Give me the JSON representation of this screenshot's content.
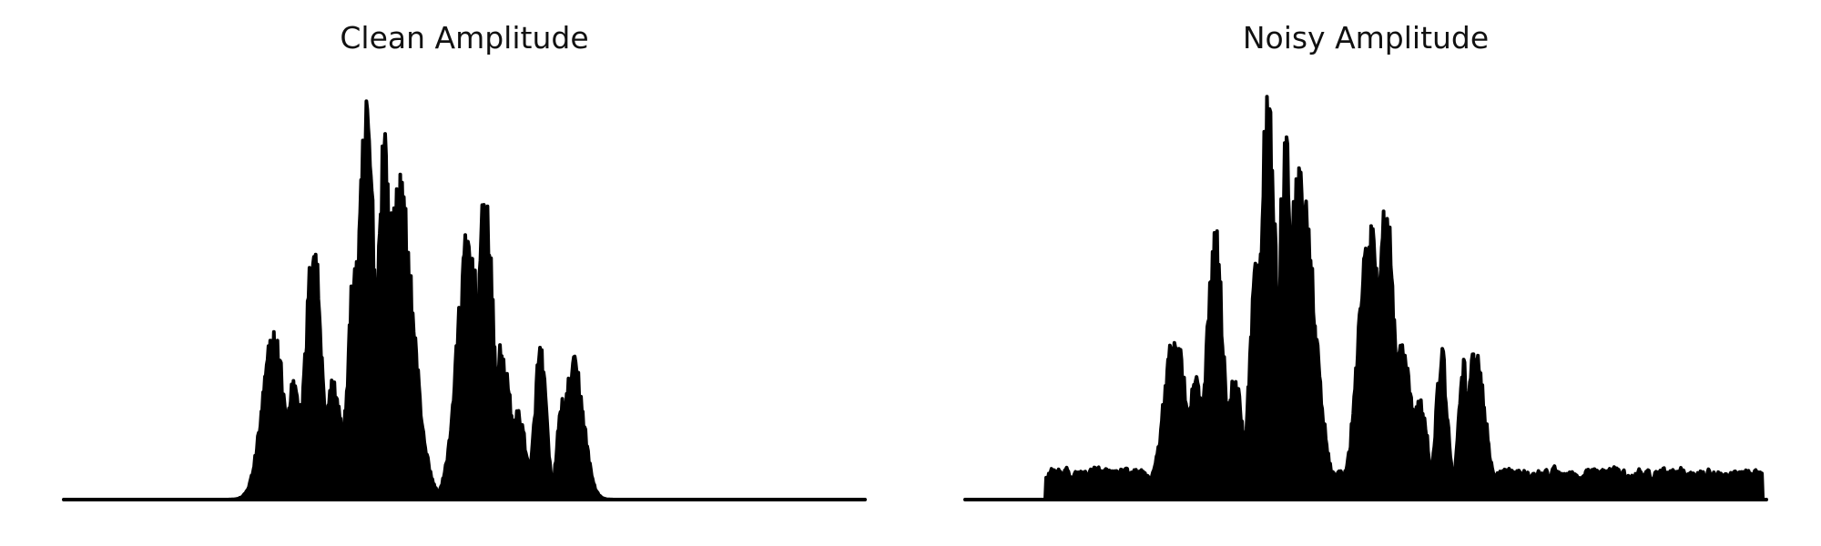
{
  "chart_data": [
    {
      "type": "area",
      "title": "Clean Amplitude",
      "xlabel": "",
      "ylabel": "",
      "axes": "off",
      "grid": false,
      "ylim": [
        0,
        1.0
      ],
      "color": "#000000",
      "bursts": [
        {
          "center": 0.262,
          "width": 0.014,
          "amplitude": 0.42
        },
        {
          "center": 0.288,
          "width": 0.01,
          "amplitude": 0.31
        },
        {
          "center": 0.312,
          "width": 0.01,
          "amplitude": 0.66
        },
        {
          "center": 0.336,
          "width": 0.011,
          "amplitude": 0.3
        },
        {
          "center": 0.364,
          "width": 0.009,
          "amplitude": 0.61
        },
        {
          "center": 0.378,
          "width": 0.01,
          "amplitude": 1.0
        },
        {
          "center": 0.4,
          "width": 0.008,
          "amplitude": 0.94
        },
        {
          "center": 0.418,
          "width": 0.018,
          "amplitude": 0.8
        },
        {
          "center": 0.505,
          "width": 0.014,
          "amplitude": 0.67
        },
        {
          "center": 0.526,
          "width": 0.01,
          "amplitude": 0.77
        },
        {
          "center": 0.546,
          "width": 0.012,
          "amplitude": 0.38
        },
        {
          "center": 0.567,
          "width": 0.01,
          "amplitude": 0.22
        },
        {
          "center": 0.595,
          "width": 0.007,
          "amplitude": 0.39
        },
        {
          "center": 0.622,
          "width": 0.006,
          "amplitude": 0.25
        },
        {
          "center": 0.637,
          "width": 0.012,
          "amplitude": 0.35
        }
      ],
      "noise_floor": 0.0
    },
    {
      "type": "area",
      "title": "Noisy Amplitude",
      "xlabel": "",
      "ylabel": "",
      "axes": "off",
      "grid": false,
      "ylim": [
        0,
        1.0
      ],
      "color": "#000000",
      "bursts": [
        {
          "center": 0.262,
          "width": 0.014,
          "amplitude": 0.42
        },
        {
          "center": 0.288,
          "width": 0.01,
          "amplitude": 0.31
        },
        {
          "center": 0.312,
          "width": 0.01,
          "amplitude": 0.68
        },
        {
          "center": 0.336,
          "width": 0.011,
          "amplitude": 0.3
        },
        {
          "center": 0.364,
          "width": 0.009,
          "amplitude": 0.61
        },
        {
          "center": 0.378,
          "width": 0.01,
          "amplitude": 1.0
        },
        {
          "center": 0.4,
          "width": 0.008,
          "amplitude": 0.94
        },
        {
          "center": 0.418,
          "width": 0.018,
          "amplitude": 0.81
        },
        {
          "center": 0.505,
          "width": 0.014,
          "amplitude": 0.7
        },
        {
          "center": 0.526,
          "width": 0.01,
          "amplitude": 0.77
        },
        {
          "center": 0.546,
          "width": 0.012,
          "amplitude": 0.4
        },
        {
          "center": 0.567,
          "width": 0.01,
          "amplitude": 0.25
        },
        {
          "center": 0.595,
          "width": 0.007,
          "amplitude": 0.37
        },
        {
          "center": 0.622,
          "width": 0.006,
          "amplitude": 0.35
        },
        {
          "center": 0.637,
          "width": 0.012,
          "amplitude": 0.37
        }
      ],
      "noise_floor": 0.07
    }
  ]
}
